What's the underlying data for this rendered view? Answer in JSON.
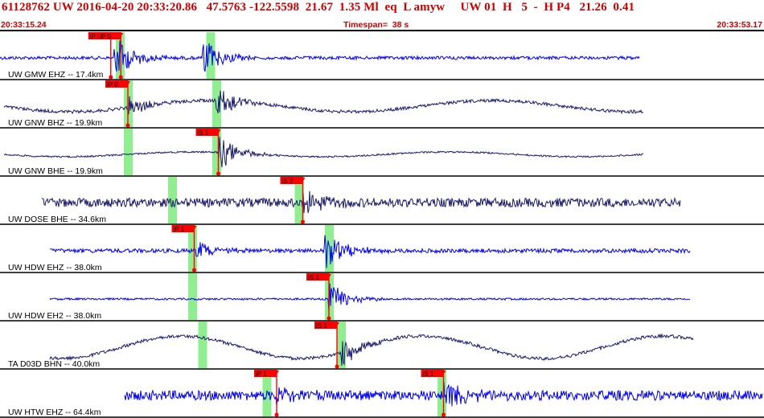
{
  "header": {
    "title": "61128762 UW 2016-04-20 20:33:20.86   47.5763 -122.5598  21.67  1.35 Ml  eq  L amyw     UW 01  H   5  -  H P4   21.26  0.41",
    "start_time": "20:33:15.24",
    "timespan": "Timespan=  38 s",
    "end_time": "20:33:53.17"
  },
  "colors": {
    "trace_blue": "#0000ee",
    "trace_navy": "#1a1a6e",
    "pick_red": "#ff0000",
    "window_green": "#90ee90",
    "header_red": "#cc0000"
  },
  "channels": [
    {
      "label": "UW GMW EHZ -- 17.4km",
      "color": "blue",
      "picks": [
        {
          "label": "iP 0",
          "time": 20.75
        },
        {
          "label": "iP 0",
          "time": 21.25
        }
      ],
      "greens": [
        21.2,
        25.7
      ]
    },
    {
      "label": "UW GNW BHZ -- 19.9km",
      "color": "navy",
      "picks": [
        {
          "label": "iP 0",
          "time": 21.6
        }
      ],
      "greens": [
        21.6,
        26.0
      ]
    },
    {
      "label": "UW GNW BHE -- 19.9km",
      "color": "navy",
      "picks": [
        {
          "label": "iS 1",
          "time": 26.1
        }
      ],
      "greens": [
        21.6,
        26.0
      ]
    },
    {
      "label": "UW DOSE BHE -- 34.6km",
      "color": "navy",
      "picks": [
        {
          "label": "iS 2",
          "time": 30.3
        }
      ],
      "greens": [
        23.8,
        30.1
      ]
    },
    {
      "label": "UW HDW EHZ -- 38.0km",
      "color": "blue",
      "picks": [
        {
          "label": "iP 1",
          "time": 24.9
        }
      ],
      "greens": [
        24.8,
        31.6
      ]
    },
    {
      "label": "UW HDW EH2 -- 38.0km",
      "color": "blue",
      "picks": [
        {
          "label": "iS 1",
          "time": 31.6
        }
      ],
      "greens": [
        24.8,
        31.6
      ]
    },
    {
      "label": "TA D03D BHN -- 40.0km",
      "color": "navy",
      "picks": [
        {
          "label": "iS 1",
          "time": 32.0
        }
      ],
      "greens": [
        25.3,
        32.2
      ]
    },
    {
      "label": "UW HTW EHZ -- 64.4km",
      "color": "blue",
      "picks": [
        {
          "label": "iP 1",
          "time": 29.0
        },
        {
          "label": "iS 1",
          "time": 37.3
        }
      ],
      "greens": [
        28.5,
        37.2
      ]
    }
  ]
}
